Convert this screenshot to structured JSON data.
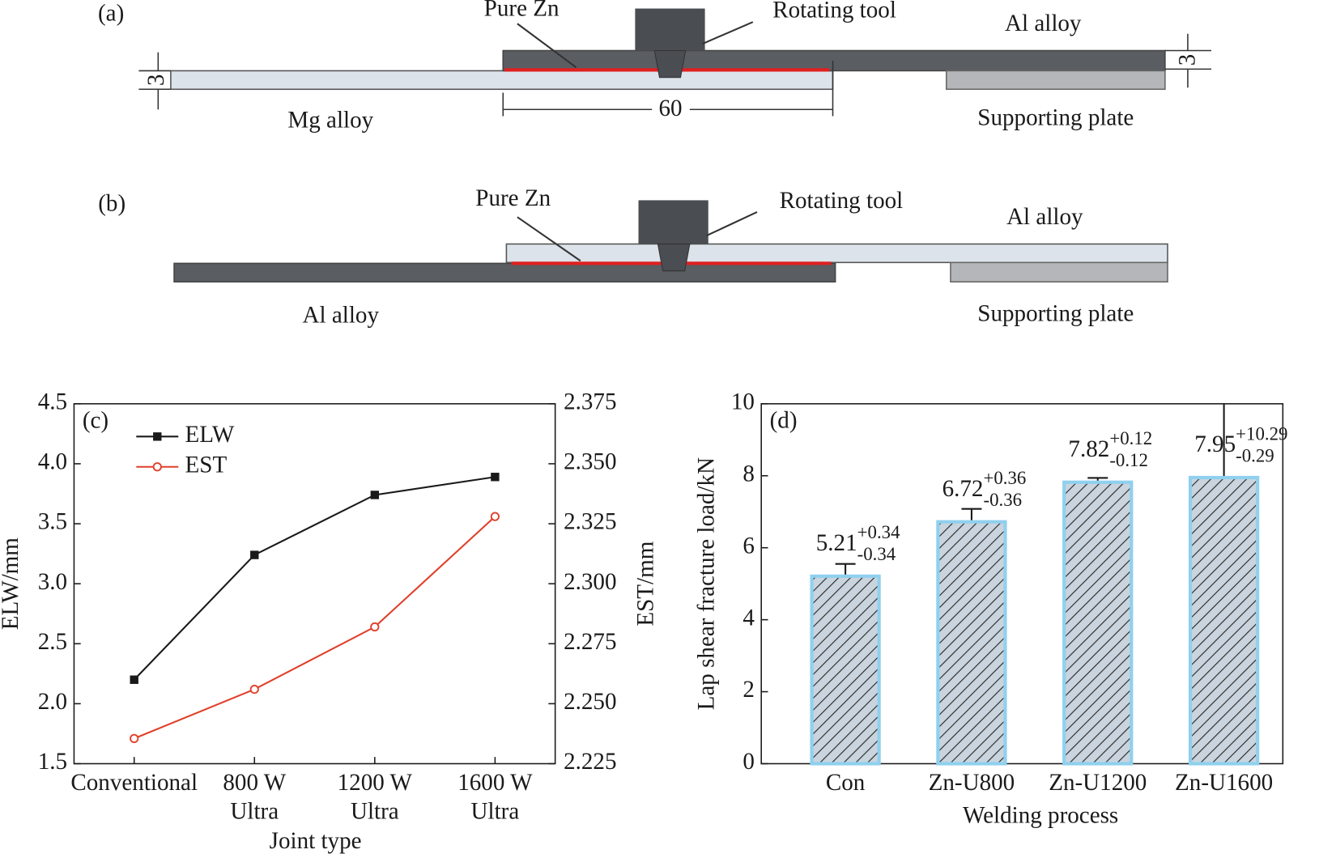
{
  "diagrams": [
    {
      "panel": "(a)",
      "labels": [
        "Pure Zn",
        "Rotating tool",
        "Al alloy",
        "Mg alloy",
        "Supporting plate"
      ],
      "dimensions": [
        3,
        60,
        3
      ]
    },
    {
      "panel": "(b)",
      "labels": [
        "Pure Zn",
        "Rotating tool",
        "Al alloy",
        "Al alloy",
        "Supporting plate"
      ]
    }
  ],
  "chart_data": [
    {
      "type": "line",
      "panel": "(c)",
      "categories": [
        [
          "Conventional"
        ],
        [
          "800 W",
          "Ultra"
        ],
        [
          "1200 W",
          "Ultra"
        ],
        [
          "1600 W",
          "Ultra"
        ]
      ],
      "x_label": "Joint type",
      "y_label": "ELW/mm",
      "y2_label": "EST/mm",
      "ylim": [
        1.5,
        4.5
      ],
      "yticks": [
        1.5,
        {
          "value": 2,
          "label": "2.0"
        },
        2.5,
        {
          "value": 3,
          "label": "3.0"
        },
        3.5,
        {
          "value": 4,
          "label": "4.0"
        },
        4.5
      ],
      "y2lim": [
        2.225,
        2.375
      ],
      "y2ticks": [
        2.225,
        {
          "value": 2.25,
          "label": "2.250"
        },
        2.275,
        {
          "value": 2.3,
          "label": "2.300"
        },
        2.325,
        {
          "value": 2.35,
          "label": "2.350"
        },
        2.375
      ],
      "legend": "upper left",
      "series": [
        {
          "name": "ELW",
          "color": "#1a1a1a",
          "marker": "square",
          "values": [
            2.2,
            3.24,
            3.74,
            3.89
          ]
        },
        {
          "name": "EST",
          "color": "#e0402a",
          "marker": "open-circle",
          "axis": "y2",
          "values": [
            2.2355,
            2.256,
            2.282,
            2.328
          ]
        }
      ]
    },
    {
      "type": "bar",
      "panel": "(d)",
      "categories": [
        "Con",
        "Zn-U800",
        "Zn-U1200",
        "Zn-U1600"
      ],
      "x_label": "Welding process",
      "y_label": "Lap shear fracture load/kN",
      "ylim": [
        0,
        10
      ],
      "yticks": [
        0,
        2,
        4,
        6,
        8,
        10
      ],
      "color": "#8fd0ee",
      "hatch": true,
      "values": [
        5.21,
        6.72,
        7.82,
        7.95
      ],
      "error_plus": [
        0.34,
        0.36,
        0.12,
        10.29
      ],
      "error_plus_labels": [
        "+0.34",
        "+0.36",
        "+0.12",
        "+10.29"
      ],
      "error_minus": [
        0.34,
        0.36,
        0.12,
        0.29
      ],
      "error_minus_labels": [
        "-0.34",
        "-0.36",
        "-0.12",
        "-0.29"
      ]
    }
  ]
}
